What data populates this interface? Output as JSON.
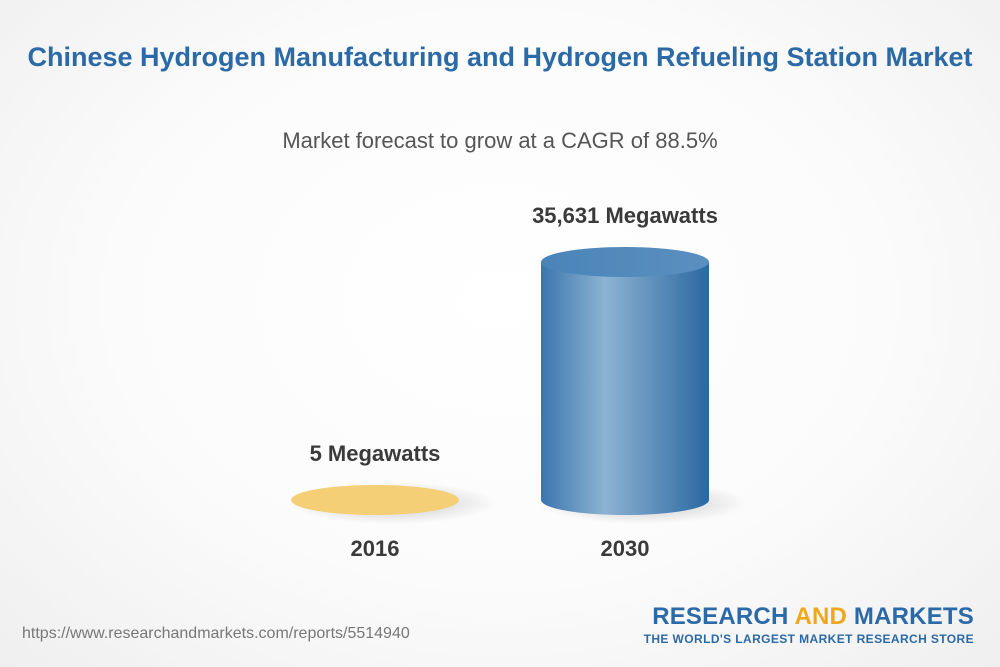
{
  "chart_data": {
    "type": "bar",
    "title": "Chinese Hydrogen Manufacturing and Hydrogen Refueling Station Market",
    "subtitle": "Market forecast to grow at a CAGR of 88.5%",
    "categories": [
      "2016",
      "2030"
    ],
    "values": [
      5,
      35631
    ],
    "data_labels": [
      "5 Megawatts",
      "35,631 Megawatts"
    ],
    "colors": [
      "#f5cf76",
      "#3f7db5"
    ]
  },
  "source": {
    "url": "https://www.researchandmarkets.com/reports/5514940"
  },
  "brand": {
    "name_part1": "RESEARCH ",
    "name_part2": "AND",
    "name_part3": " MARKETS",
    "tagline": "THE WORLD'S LARGEST MARKET RESEARCH STORE"
  }
}
